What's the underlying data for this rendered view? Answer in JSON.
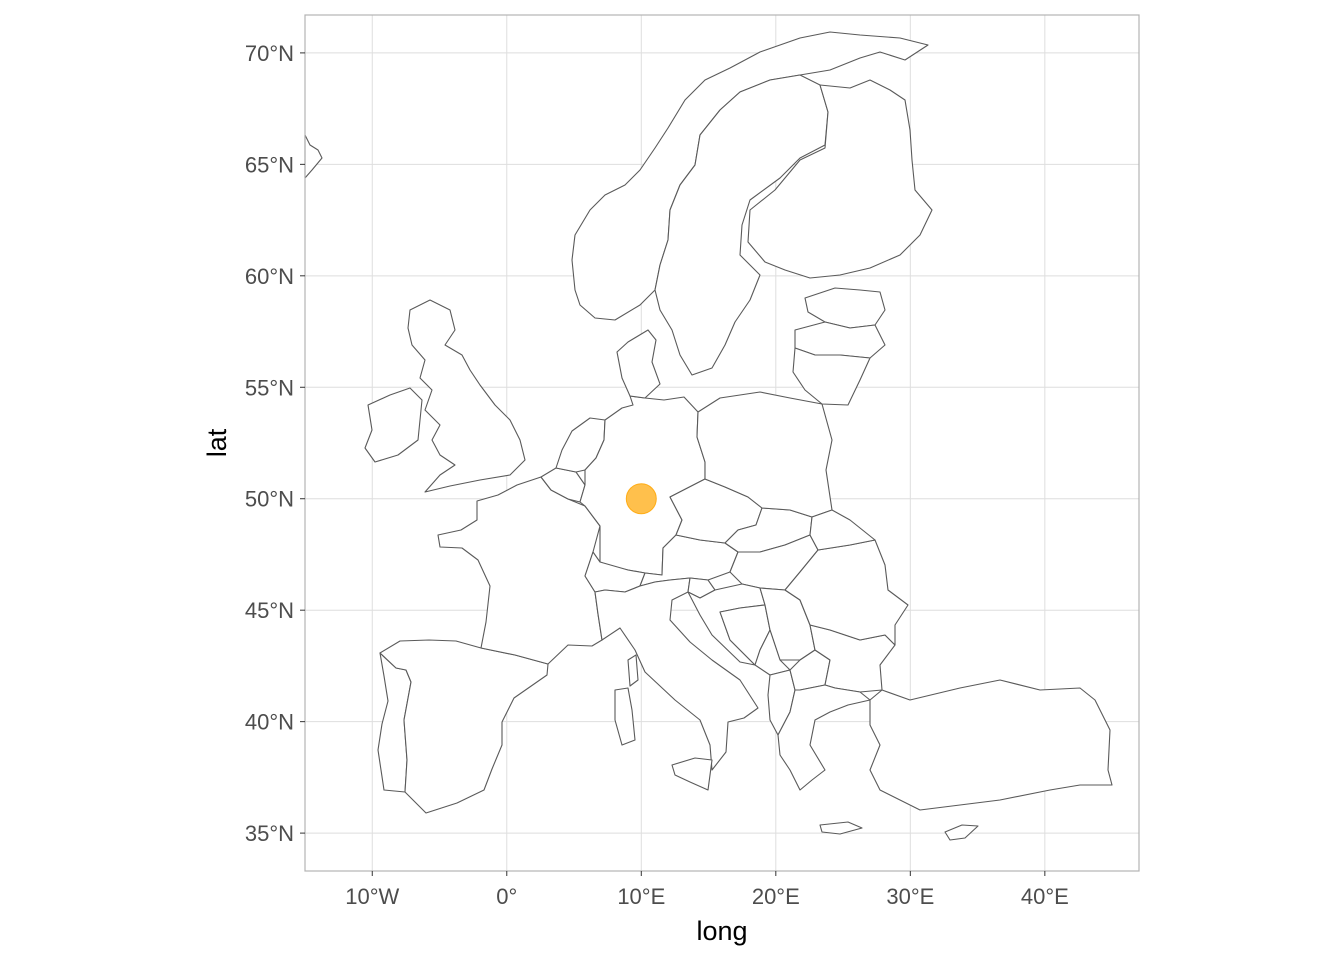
{
  "chart_data": {
    "type": "map",
    "xlabel": "long",
    "ylabel": "lat",
    "xlim": [
      -15,
      47
    ],
    "ylim": [
      33.3,
      71.7
    ],
    "x_ticks": [
      {
        "value": -10,
        "label": "10°W"
      },
      {
        "value": 0,
        "label": "0°"
      },
      {
        "value": 10,
        "label": "10°E"
      },
      {
        "value": 20,
        "label": "20°E"
      },
      {
        "value": 30,
        "label": "30°E"
      },
      {
        "value": 40,
        "label": "40°E"
      }
    ],
    "y_ticks": [
      {
        "value": 35,
        "label": "35°N"
      },
      {
        "value": 40,
        "label": "40°N"
      },
      {
        "value": 45,
        "label": "45°N"
      },
      {
        "value": 50,
        "label": "50°N"
      },
      {
        "value": 55,
        "label": "55°N"
      },
      {
        "value": 60,
        "label": "60°N"
      },
      {
        "value": 65,
        "label": "65°N"
      },
      {
        "value": 70,
        "label": "70°N"
      }
    ],
    "grid": true,
    "theme": "light",
    "base_map": "Europe country outlines",
    "points": [
      {
        "long": 10,
        "lat": 50,
        "color": "#FFA500",
        "opacity": 0.7
      }
    ]
  },
  "colors": {
    "land_fill": "#ffffff",
    "border": "#5a5a5a",
    "grid": "#dedede",
    "panel_border": "#b3b3b3",
    "point": "#FFA500"
  }
}
